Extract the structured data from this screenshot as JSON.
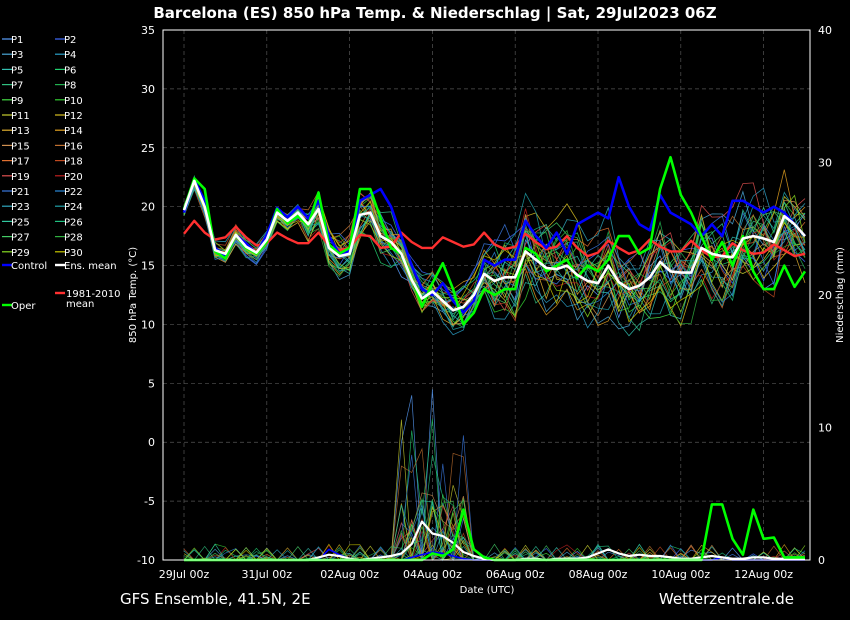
{
  "title": "Barcelona  (ES)  850 hPa Temp. & Niederschlag | Sat, 29Jul2023 06Z",
  "footer_left": "GFS Ensemble, 41.5N, 2E",
  "footer_right": "Wetterzentrale.de",
  "chart_data": {
    "type": "line",
    "xlabel": "Date (UTC)",
    "ylabel_left": "850 hPa Temp. (°C)",
    "ylabel_right": "Niederschlag (mm)",
    "ylim_left": [
      -10,
      35
    ],
    "ylim_right": [
      0,
      40
    ],
    "yticks_left": [
      "35",
      "30",
      "25",
      "20",
      "15",
      "10",
      "5",
      "0",
      "-5",
      "-10"
    ],
    "yticks_right": [
      "40",
      "30",
      "20",
      "10",
      "0"
    ],
    "x_ticks": [
      "29Jul 00z",
      "31Jul 00z",
      "02Aug 00z",
      "04Aug 00z",
      "06Aug 00z",
      "08Aug 00z",
      "10Aug 00z",
      "12Aug 00z"
    ],
    "grid": true,
    "legend_position": "left",
    "legend": [
      {
        "name": "P1",
        "color": "#5aa0ff"
      },
      {
        "name": "P2",
        "color": "#3f6bff"
      },
      {
        "name": "P3",
        "color": "#4aa8d8"
      },
      {
        "name": "P4",
        "color": "#2aa0c8"
      },
      {
        "name": "P5",
        "color": "#33c0b0"
      },
      {
        "name": "P6",
        "color": "#22d070"
      },
      {
        "name": "P7",
        "color": "#30c080"
      },
      {
        "name": "P8",
        "color": "#22b050"
      },
      {
        "name": "P9",
        "color": "#44dd44"
      },
      {
        "name": "P10",
        "color": "#33cc33"
      },
      {
        "name": "P11",
        "color": "#c8d030"
      },
      {
        "name": "P12",
        "color": "#d8c020"
      },
      {
        "name": "P13",
        "color": "#e0b030"
      },
      {
        "name": "P14",
        "color": "#e0a020"
      },
      {
        "name": "P15",
        "color": "#d09050"
      },
      {
        "name": "P16",
        "color": "#c07030"
      },
      {
        "name": "P17",
        "color": "#e07030"
      },
      {
        "name": "P18",
        "color": "#c04a20"
      },
      {
        "name": "P19",
        "color": "#e05050"
      },
      {
        "name": "P20",
        "color": "#c02020"
      },
      {
        "name": "P21",
        "color": "#3a78e0"
      },
      {
        "name": "P22",
        "color": "#2a88d8"
      },
      {
        "name": "P23",
        "color": "#30a8c0"
      },
      {
        "name": "P24",
        "color": "#20a0a8"
      },
      {
        "name": "P25",
        "color": "#30c8a0"
      },
      {
        "name": "P26",
        "color": "#20c080"
      },
      {
        "name": "P27",
        "color": "#44cc66"
      },
      {
        "name": "P28",
        "color": "#30b040"
      },
      {
        "name": "P29",
        "color": "#88dd22"
      },
      {
        "name": "P30",
        "color": "#c8c800"
      },
      {
        "name": "Control",
        "color": "#0000ff"
      },
      {
        "name": "Ens. mean",
        "color": "#ffffff"
      },
      {
        "name": "Oper",
        "color": "#00ff00"
      },
      {
        "name": "1981-2010 mean",
        "color": "#ff3030"
      }
    ],
    "series": [
      {
        "name": "Control",
        "color": "#0000ff",
        "values": [
          19.5,
          22.3,
          20.5,
          16.5,
          15.8,
          17.6,
          16.9,
          16.0,
          17.6,
          19.9,
          19.1,
          20.0,
          19.0,
          20.5,
          17.5,
          16.0,
          16.2,
          20.5,
          21.0,
          21.5,
          20.0,
          17.5,
          15.0,
          13.0,
          12.5,
          13.5,
          12.0,
          11.0,
          12.0,
          15.5,
          15.0,
          15.5,
          15.5,
          18.8,
          17.5,
          16.5,
          17.8,
          16.0,
          18.5,
          19.0,
          19.5,
          19.0,
          22.5,
          20.0,
          18.5,
          18.0,
          21.0,
          19.5,
          19.0,
          18.5,
          17.5,
          18.5,
          17.5,
          20.5,
          20.5,
          20.0,
          19.5,
          20.0,
          19.5,
          18.5,
          17.5
        ]
      },
      {
        "name": "Oper",
        "color": "#00ff00",
        "values": [
          19.8,
          22.4,
          21.5,
          16.2,
          15.6,
          17.6,
          16.5,
          16.0,
          17.0,
          19.8,
          18.6,
          19.2,
          18.4,
          21.2,
          16.8,
          16.0,
          16.5,
          21.5,
          21.5,
          19.0,
          16.5,
          16.0,
          14.0,
          11.5,
          13.5,
          15.2,
          13.0,
          10.0,
          11.0,
          13.0,
          12.5,
          13.0,
          13.0,
          16.5,
          16.0,
          14.5,
          15.0,
          15.5,
          14.0,
          15.0,
          14.5,
          15.5,
          17.5,
          17.5,
          16.0,
          16.5,
          21.5,
          24.2,
          21.0,
          19.5,
          17.5,
          15.5,
          17.0,
          15.0,
          17.5,
          14.5,
          13.0,
          13.0,
          15.0,
          13.2,
          14.5
        ]
      },
      {
        "name": "Ens. mean",
        "color": "#ffffff",
        "values": [
          19.7,
          22.2,
          20.0,
          16.3,
          16.0,
          17.6,
          16.6,
          16.1,
          17.2,
          19.5,
          18.8,
          19.5,
          18.5,
          19.8,
          16.5,
          15.8,
          16.0,
          19.3,
          19.5,
          17.5,
          17.0,
          16.0,
          13.8,
          12.2,
          12.8,
          12.0,
          11.2,
          11.5,
          12.5,
          14.3,
          13.7,
          14.0,
          14.0,
          16.2,
          15.5,
          14.8,
          14.7,
          15.0,
          14.2,
          13.7,
          13.5,
          15.0,
          13.6,
          13.0,
          13.3,
          14.0,
          15.3,
          14.5,
          14.4,
          14.4,
          16.5,
          16.0,
          15.8,
          15.7,
          17.3,
          17.5,
          17.3,
          17.0,
          19.2,
          18.5,
          17.5
        ]
      },
      {
        "name": "1981-2010 mean",
        "color": "#ff3030",
        "values": [
          17.7,
          18.8,
          17.8,
          17.2,
          17.4,
          18.3,
          17.4,
          16.7,
          16.9,
          17.8,
          17.3,
          16.9,
          16.9,
          17.8,
          16.7,
          16.3,
          16.5,
          17.6,
          17.5,
          16.5,
          16.6,
          17.8,
          17.0,
          16.5,
          16.5,
          17.4,
          17.0,
          16.6,
          16.8,
          17.8,
          16.8,
          16.4,
          16.6,
          17.7,
          17.0,
          16.4,
          16.6,
          17.5,
          16.5,
          15.8,
          16.1,
          17.1,
          16.5,
          16.0,
          16.3,
          17.2,
          16.6,
          16.2,
          16.2,
          17.1,
          16.3,
          15.7,
          15.8,
          16.9,
          16.3,
          16.0,
          16.1,
          16.8,
          16.3,
          15.8,
          16.0
        ]
      },
      {
        "name": "Oper precip",
        "color": "#00ff00",
        "axis": "right",
        "values": [
          0,
          0,
          0,
          0,
          0,
          0,
          0,
          0,
          0,
          0,
          0,
          0,
          0,
          0,
          0,
          0,
          0,
          0,
          0,
          0,
          0,
          0,
          0,
          0,
          0.5,
          0.3,
          0.8,
          3.8,
          0.8,
          0.2,
          0,
          0,
          0,
          0,
          0,
          0,
          0,
          0,
          0,
          0,
          0,
          0,
          0,
          0,
          0,
          0,
          0,
          0,
          0,
          0,
          0,
          4.2,
          4.2,
          1.6,
          0.4,
          3.8,
          1.6,
          1.7,
          0.2,
          0.2,
          0.2
        ]
      },
      {
        "name": "Ens. mean precip",
        "color": "#ffffff",
        "axis": "right",
        "values": [
          0,
          0,
          0,
          0,
          0,
          0,
          0,
          0,
          0,
          0,
          0,
          0,
          0,
          0.2,
          0.4,
          0.3,
          0.1,
          0,
          0.1,
          0.2,
          0.3,
          0.5,
          1.2,
          2.9,
          2.0,
          1.8,
          1.3,
          0.6,
          0.3,
          0.1,
          0,
          0,
          0,
          0.1,
          0.1,
          0,
          0.1,
          0.1,
          0.1,
          0.2,
          0.5,
          0.8,
          0.5,
          0.3,
          0.4,
          0.3,
          0.3,
          0.2,
          0.1,
          0.1,
          0.2,
          0.3,
          0.2,
          0.1,
          0.1,
          0.2,
          0.2,
          0.1,
          0.1,
          0.1,
          0.1
        ]
      },
      {
        "name": "Control precip",
        "color": "#0000ff",
        "axis": "right",
        "values": [
          0,
          0,
          0,
          0,
          0,
          0,
          0,
          0,
          0,
          0,
          0,
          0,
          0,
          0,
          0.8,
          0.4,
          0.1,
          0,
          0,
          0,
          0,
          0,
          0.2,
          0.4,
          0.6,
          0.5,
          0.3,
          0.1,
          0,
          0,
          0,
          0,
          0,
          0,
          0,
          0,
          0,
          0,
          0,
          0,
          0,
          0,
          0,
          0,
          0,
          0,
          0,
          0,
          0,
          0,
          0,
          0,
          0.2,
          0,
          0,
          0,
          0,
          0,
          0,
          0,
          0
        ]
      }
    ]
  }
}
